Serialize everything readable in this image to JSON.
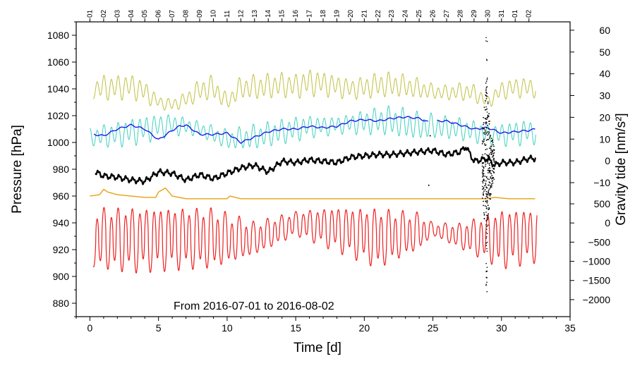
{
  "chart_data": {
    "type": "line",
    "title": "",
    "annotation": "From 2016-07-01 to 2016-08-02",
    "xlabel": "Time [d]",
    "ylabel_left": "Pressure [hPa]",
    "ylabel_right": "Gravity tide [nm/s²]",
    "xlim": [
      -1,
      35
    ],
    "xticks": [
      0,
      5,
      10,
      15,
      20,
      25,
      30,
      35
    ],
    "ylim_left": [
      870,
      1090
    ],
    "yticks_left": [
      880,
      900,
      920,
      940,
      960,
      980,
      1000,
      1020,
      1040,
      1060,
      1080
    ],
    "yticks_right_upper": {
      "labels": [
        "60",
        "50",
        "40",
        "30",
        "20",
        "10",
        "0",
        "−10"
      ],
      "values": [
        60,
        50,
        40,
        30,
        20,
        10,
        0,
        -10
      ],
      "pressure_equiv": [
        1083.75,
        1067.5,
        1051.25,
        1035,
        1018.75,
        1002.5,
        986.25,
        970
      ]
    },
    "yticks_right_lower": {
      "labels": [
        "500",
        "0",
        "−500",
        "−1000",
        "−1500",
        "−2000"
      ],
      "values": [
        500,
        0,
        -500,
        -1000,
        -1500,
        -2000
      ],
      "pressure_equiv": [
        954.2,
        939.9,
        925.6,
        911.3,
        897.0,
        882.7
      ]
    },
    "date_ticks": [
      {
        "label": "01",
        "x": 0
      },
      {
        "label": "02",
        "x": 1
      },
      {
        "label": "03",
        "x": 2
      },
      {
        "label": "04",
        "x": 3
      },
      {
        "label": "05",
        "x": 4
      },
      {
        "label": "06",
        "x": 5
      },
      {
        "label": "07",
        "x": 6
      },
      {
        "label": "08",
        "x": 7
      },
      {
        "label": "09",
        "x": 8
      },
      {
        "label": "10",
        "x": 9
      },
      {
        "label": "11",
        "x": 10
      },
      {
        "label": "12",
        "x": 11
      },
      {
        "label": "13",
        "x": 12
      },
      {
        "label": "14",
        "x": 13
      },
      {
        "label": "15",
        "x": 14
      },
      {
        "label": "16",
        "x": 15
      },
      {
        "label": "17",
        "x": 16
      },
      {
        "label": "18",
        "x": 17
      },
      {
        "label": "19",
        "x": 18
      },
      {
        "label": "20",
        "x": 19
      },
      {
        "label": "21",
        "x": 20
      },
      {
        "label": "22",
        "x": 21
      },
      {
        "label": "23",
        "x": 22
      },
      {
        "label": "24",
        "x": 23
      },
      {
        "label": "25",
        "x": 24
      },
      {
        "label": "26",
        "x": 25
      },
      {
        "label": "27",
        "x": 26
      },
      {
        "label": "28",
        "x": 27
      },
      {
        "label": "29",
        "x": 28
      },
      {
        "label": "30",
        "x": 29
      },
      {
        "label": "31",
        "x": 30
      },
      {
        "label": "01",
        "x": 31
      },
      {
        "label": "02",
        "x": 32
      }
    ],
    "series": [
      {
        "name": "olive",
        "color": "#c0c040",
        "axis": "gravity-tide-upper",
        "x": [
          0.25,
          1.0,
          2.0,
          3.0,
          4.0,
          5.0,
          6.0,
          7.0,
          8.0,
          9.0,
          10.0,
          11.0,
          12.0,
          13.0,
          14.0,
          15.0,
          16.0,
          17.0,
          18.0,
          19.0,
          20.0,
          21.0,
          22.0,
          23.0,
          24.0,
          25.0,
          26.0,
          27.0,
          28.0,
          29.0,
          30.0,
          31.0,
          32.0,
          32.5
        ],
        "mean": [
          1040,
          1041,
          1041,
          1042,
          1038,
          1030,
          1028,
          1032,
          1039,
          1041,
          1030,
          1041,
          1041,
          1042,
          1043,
          1042,
          1045,
          1044,
          1042,
          1040,
          1041,
          1043,
          1043,
          1042,
          1040,
          1038,
          1037,
          1038,
          1037,
          1030,
          1039,
          1041,
          1041,
          1041
        ],
        "amp": [
          8,
          10,
          10,
          10,
          9,
          5,
          5,
          6,
          9,
          10,
          6,
          9,
          10,
          10,
          10,
          10,
          11,
          10,
          9,
          8,
          9,
          10,
          10,
          9,
          8,
          6,
          6,
          7,
          7,
          5,
          7,
          8,
          8,
          8
        ]
      },
      {
        "name": "cyan",
        "color": "#40d0c0",
        "axis": "gravity-tide-upper",
        "x": [
          0.0,
          1.0,
          2.0,
          3.0,
          4.0,
          5.0,
          6.0,
          7.0,
          8.0,
          9.0,
          10.0,
          11.0,
          12.0,
          13.0,
          14.0,
          15.0,
          16.0,
          17.0,
          18.0,
          19.0,
          20.0,
          21.0,
          22.0,
          23.0,
          24.0,
          25.0,
          26.0,
          27.0,
          28.0,
          29.0,
          30.0,
          31.0,
          32.0,
          32.5
        ],
        "mean": [
          1004,
          1005,
          1006,
          1008,
          1010,
          1012,
          1013,
          1012,
          1010,
          1006,
          1002,
          1003,
          1004,
          1006,
          1008,
          1010,
          1012,
          1012,
          1013,
          1014,
          1015,
          1016,
          1016,
          1014,
          1012,
          1012,
          1011,
          1010,
          1008,
          1006,
          1006,
          1007,
          1008,
          1008
        ],
        "amp": [
          7,
          9,
          10,
          11,
          11,
          10,
          9,
          7,
          6,
          7,
          8,
          9,
          10,
          10,
          10,
          10,
          9,
          8,
          7,
          8,
          10,
          11,
          12,
          12,
          11,
          10,
          9,
          9,
          9,
          8,
          9,
          10,
          10,
          10
        ]
      },
      {
        "name": "blue",
        "color": "#1a1aee",
        "axis": "pressure",
        "x": [
          0.3,
          1.0,
          2.0,
          3.0,
          4.0,
          5.0,
          6.0,
          6.5,
          7.0,
          8.0,
          9.0,
          10.0,
          11.0,
          12.0,
          13.0,
          14.0,
          15.0,
          16.0,
          17.0,
          18.0,
          19.0,
          20.0,
          21.0,
          22.0,
          23.0,
          24.0,
          24.7
        ],
        "values": [
          1006,
          1005,
          1010,
          1013,
          1010,
          1002,
          1009,
          1012,
          1013,
          1006,
          1006,
          1007,
          1000,
          1004,
          1008,
          1010,
          1010,
          1012,
          1011,
          1012,
          1016,
          1017,
          1016,
          1018,
          1019,
          1018,
          1015
        ],
        "x2": [
          25.3,
          26.0,
          27.0,
          28.0,
          29.0,
          30.0,
          31.0,
          32.0,
          32.5
        ],
        "values2": [
          1016,
          1016,
          1013,
          1010,
          1011,
          1007,
          1008,
          1009,
          1010
        ]
      },
      {
        "name": "black",
        "color": "#000000",
        "axis": "pressure",
        "x": [
          0.4,
          1.0,
          2.0,
          3.0,
          4.0,
          5.0,
          6.0,
          7.0,
          8.0,
          9.0,
          10.0,
          11.0,
          12.0,
          13.0,
          14.0,
          15.0,
          16.0,
          17.0,
          18.0,
          19.0,
          20.0,
          21.0,
          22.0,
          23.0,
          24.0,
          25.0,
          26.0,
          27.0,
          27.4,
          28.0,
          29.0,
          29.5,
          30.0,
          31.0,
          32.0,
          32.5
        ],
        "values": [
          978,
          975,
          974,
          972,
          971,
          978,
          977,
          972,
          976,
          973,
          977,
          981,
          983,
          978,
          986,
          985,
          987,
          986,
          985,
          989,
          990,
          991,
          991,
          992,
          993,
          994,
          991,
          993,
          997,
          986,
          988,
          983,
          985,
          985,
          988,
          988
        ]
      },
      {
        "name": "orange",
        "color": "#e8a010",
        "axis": "pressure",
        "x": [
          0.0,
          0.7,
          1.0,
          1.3,
          2.0,
          3.0,
          4.0,
          4.8,
          5.0,
          5.5,
          6.0,
          7.0,
          9.0,
          10.0,
          10.2,
          11.0,
          12.0,
          20.0,
          25.0,
          29.0,
          29.5,
          30.5,
          32.5
        ],
        "values": [
          960,
          961,
          965,
          963,
          961,
          960,
          959,
          959,
          963,
          966,
          960,
          958,
          958,
          958,
          960,
          958,
          958,
          958,
          958,
          958,
          959,
          958,
          958
        ]
      },
      {
        "name": "red",
        "color": "#ee2020",
        "axis": "gravity-tide-lower",
        "x": [
          0.25,
          3.0,
          6.0,
          9.0,
          12.0,
          15.0,
          18.0,
          21.0,
          24.0,
          25.0,
          27.0,
          30.0,
          32.6
        ],
        "upper": [
          952,
          953,
          953,
          952,
          941,
          949,
          953,
          952,
          948,
          940,
          940,
          951,
          952
        ],
        "lower": [
          905,
          902,
          904,
          905,
          915,
          930,
          918,
          905,
          919,
          930,
          920,
          905,
          910
        ],
        "scattered_vertical_at_x": 28.9
      }
    ]
  }
}
